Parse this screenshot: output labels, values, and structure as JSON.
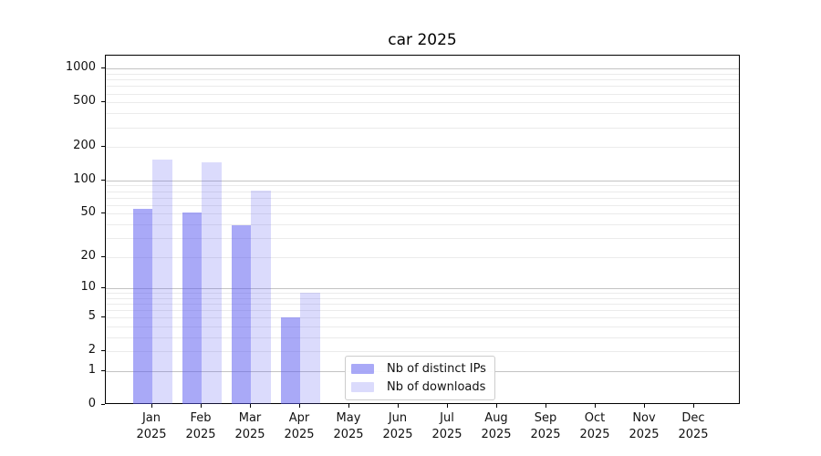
{
  "chart_data": {
    "type": "bar",
    "title": "car 2025",
    "categories": [
      "Jan",
      "Feb",
      "Mar",
      "Apr",
      "May",
      "Jun",
      "Jul",
      "Aug",
      "Sep",
      "Oct",
      "Nov",
      "Dec"
    ],
    "category_year": "2025",
    "series": [
      {
        "name": "Nb of distinct IPs",
        "color": "rgba(90,90,240,0.52)",
        "values": [
          55,
          51,
          39,
          5,
          0,
          0,
          0,
          0,
          0,
          0,
          0,
          0
        ]
      },
      {
        "name": "Nb of downloads",
        "color": "rgba(90,90,240,0.22)",
        "values": [
          155,
          145,
          81,
          9,
          0,
          0,
          0,
          0,
          0,
          0,
          0,
          0
        ]
      }
    ],
    "yscale": "log1p",
    "ylim": [
      0,
      1311
    ],
    "yticks": [
      0,
      1,
      2,
      5,
      10,
      20,
      50,
      100,
      200,
      500,
      1000
    ],
    "major_gridlines": [
      1,
      10,
      100,
      1000
    ],
    "minor_gridlines": [
      2,
      3,
      4,
      5,
      6,
      7,
      8,
      9,
      20,
      30,
      40,
      50,
      60,
      70,
      80,
      90,
      200,
      300,
      400,
      500,
      600,
      700,
      800,
      900
    ],
    "grid": true,
    "legend_position": "lower center",
    "colors": {
      "bar_base": "#5a5af0",
      "major_grid": "#c3c3c3",
      "minor_grid": "#ebebeb",
      "axis": "#000000",
      "text": "#111111"
    }
  }
}
